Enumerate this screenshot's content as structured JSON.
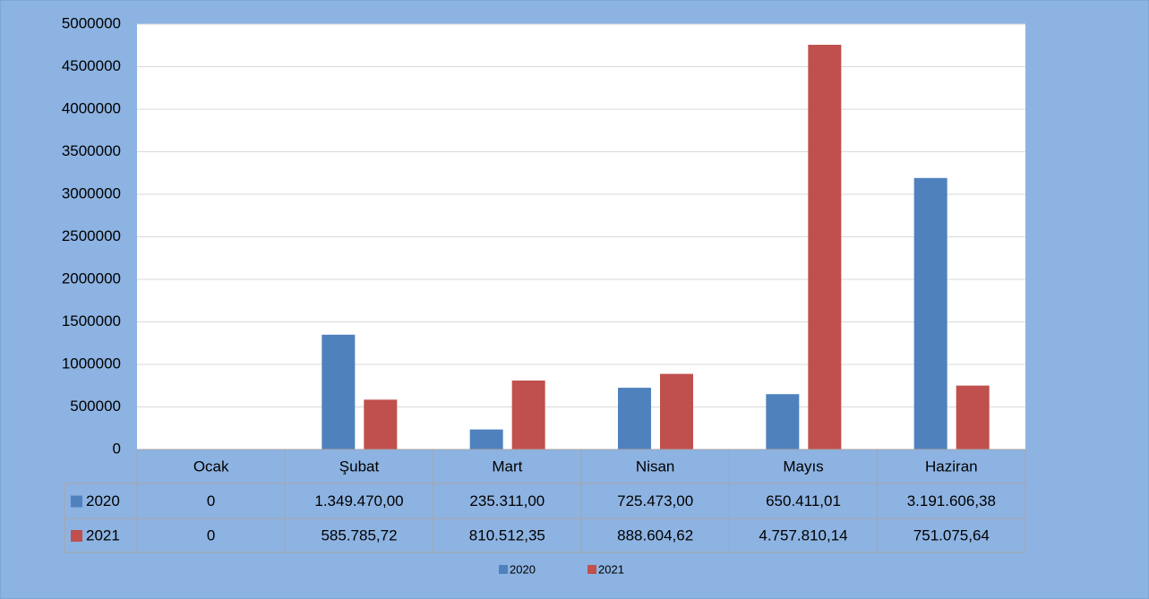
{
  "chart_data": {
    "type": "bar",
    "categories": [
      "Ocak",
      "Şubat",
      "Mart",
      "Nisan",
      "Mayıs",
      "Haziran"
    ],
    "series": [
      {
        "name": "2020",
        "color": "#4f81bd",
        "values": [
          0,
          1349470.0,
          235311.0,
          725473.0,
          650411.01,
          3191606.38
        ],
        "value_labels": [
          "0",
          "1.349.470,00",
          "235.311,00",
          "725.473,00",
          "650.411,01",
          "3.191.606,38"
        ]
      },
      {
        "name": "2021",
        "color": "#c0504d",
        "values": [
          0,
          585785.72,
          810512.35,
          888604.62,
          4757810.14,
          751075.64
        ],
        "value_labels": [
          "0",
          "585.785,72",
          "810.512,35",
          "888.604,62",
          "4.757.810,14",
          "751.075,64"
        ]
      }
    ],
    "ylim": [
      0,
      5000000
    ],
    "yticks": [
      0,
      500000,
      1000000,
      1500000,
      2000000,
      2500000,
      3000000,
      3500000,
      4000000,
      4500000,
      5000000
    ],
    "grid": true,
    "legend": "bottom"
  }
}
